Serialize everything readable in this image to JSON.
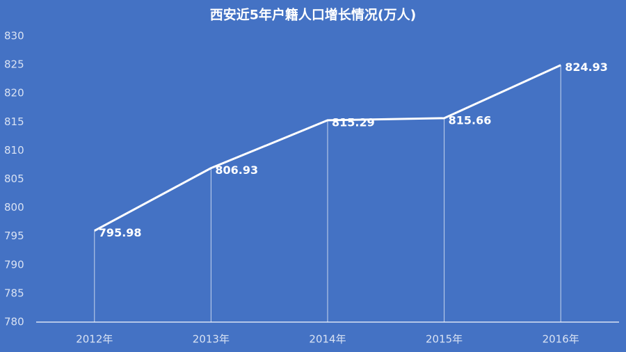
{
  "chart_data": {
    "type": "line",
    "title": "西安近5年户籍人口增长情况(万人)",
    "categories": [
      "2012年",
      "2013年",
      "2014年",
      "2015年",
      "2016年"
    ],
    "values": [
      795.98,
      806.93,
      815.29,
      815.66,
      824.93
    ],
    "color": "#ffffff",
    "ylim": [
      780,
      830
    ],
    "yticks": [
      780,
      785,
      790,
      795,
      800,
      805,
      810,
      815,
      820,
      825,
      830
    ],
    "grid": false
  }
}
